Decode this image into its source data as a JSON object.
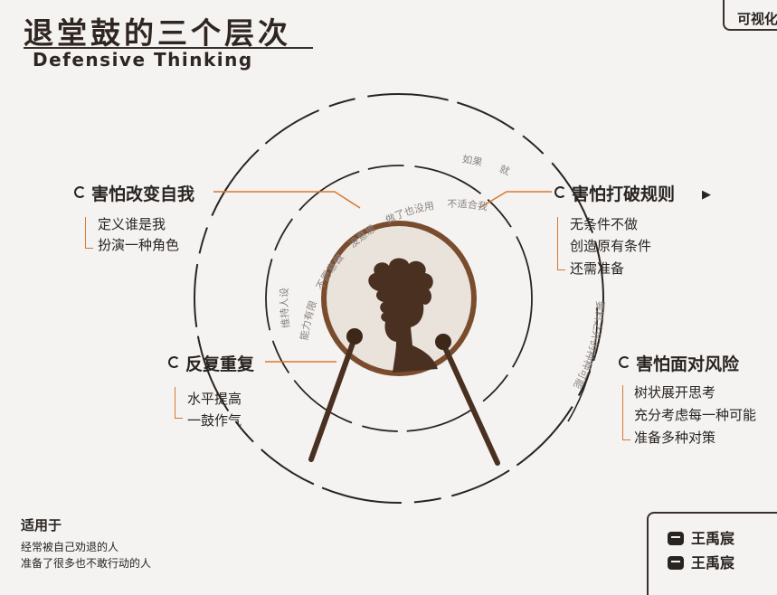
{
  "title": {
    "cn": "退堂鼓的三个层次",
    "en": "Defensive Thinking"
  },
  "top_tag": "可视化",
  "levels": {
    "change_self": {
      "heading": "害怕改变自我",
      "items": [
        "定义谁是我",
        "扮演一种角色"
      ]
    },
    "break_rules": {
      "heading": "害怕打破规则",
      "items": [
        "无条件不做",
        "创造原有条件",
        "还需准备"
      ]
    },
    "face_risk": {
      "heading": "害怕面对风险",
      "items": [
        "树状展开思考",
        "充分考虑每一种可能",
        "准备多种对策"
      ]
    },
    "repeat": {
      "heading": "反复重复",
      "items": [
        "水平提高",
        "一鼓作气"
      ]
    }
  },
  "ring_labels": {
    "outer": [
      "如果",
      "就"
    ],
    "middle": [
      "能力有限",
      "不愿意做",
      "没意思",
      "做了也没用",
      "不适合我"
    ],
    "left": "维持人设",
    "right": "要料之外的种种可能"
  },
  "applies": {
    "title": "适用于",
    "lines": [
      "经常被自己劝退的人",
      "准备了很多也不敢行动的人"
    ]
  },
  "social": [
    {
      "icon": "bilibili-icon",
      "name": "王禹宸"
    },
    {
      "icon": "wechat-icon",
      "name": "王禹宸"
    }
  ],
  "colors": {
    "accent": "#d9782d",
    "ink": "#2a2421",
    "drum": "#7a4c2e",
    "drumhead": "#e9e3dc",
    "silhouette": "#4a3020"
  }
}
